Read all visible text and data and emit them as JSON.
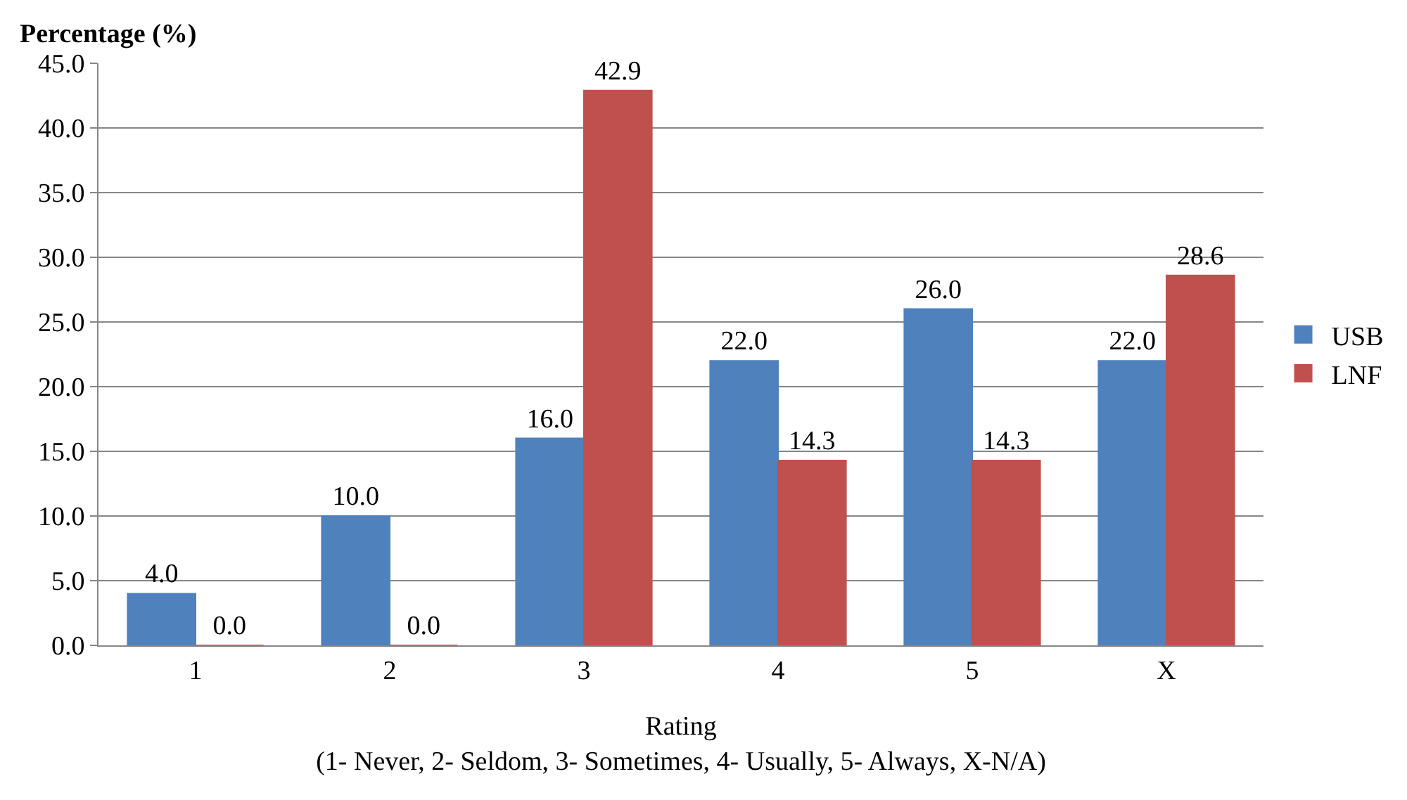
{
  "chart_data": {
    "type": "bar",
    "ylabel": "Percentage (%)",
    "xlabel": "Rating\n(1- Never, 2- Seldom, 3- Sometimes, 4- Usually, 5- Always, X-N/A)",
    "categories": [
      "1",
      "2",
      "3",
      "4",
      "5",
      "X"
    ],
    "series": [
      {
        "name": "USB",
        "color": "#4f81bd",
        "values": [
          4.0,
          10.0,
          16.0,
          22.0,
          26.0,
          22.0
        ],
        "value_labels": [
          "4.0",
          "10.0",
          "16.0",
          "22.0",
          "26.0",
          "22.0"
        ]
      },
      {
        "name": "LNF",
        "color": "#c0504d",
        "values": [
          0.0,
          0.0,
          42.9,
          14.3,
          14.3,
          28.6
        ],
        "value_labels": [
          "0.0",
          "0.0",
          "42.9",
          "14.3",
          "14.3",
          "28.6"
        ]
      }
    ],
    "ylim": [
      0,
      45
    ],
    "yticks": [
      {
        "value": 0,
        "label": "0.0"
      },
      {
        "value": 5,
        "label": "5.0"
      },
      {
        "value": 10,
        "label": "10.0"
      },
      {
        "value": 15,
        "label": "15.0"
      },
      {
        "value": 20,
        "label": "20.0"
      },
      {
        "value": 25,
        "label": "25.0"
      },
      {
        "value": 30,
        "label": "30.0"
      },
      {
        "value": 35,
        "label": "35.0"
      },
      {
        "value": 40,
        "label": "40.0"
      },
      {
        "value": 45,
        "label": "45.0"
      }
    ],
    "grid": "y",
    "legend": "right"
  }
}
